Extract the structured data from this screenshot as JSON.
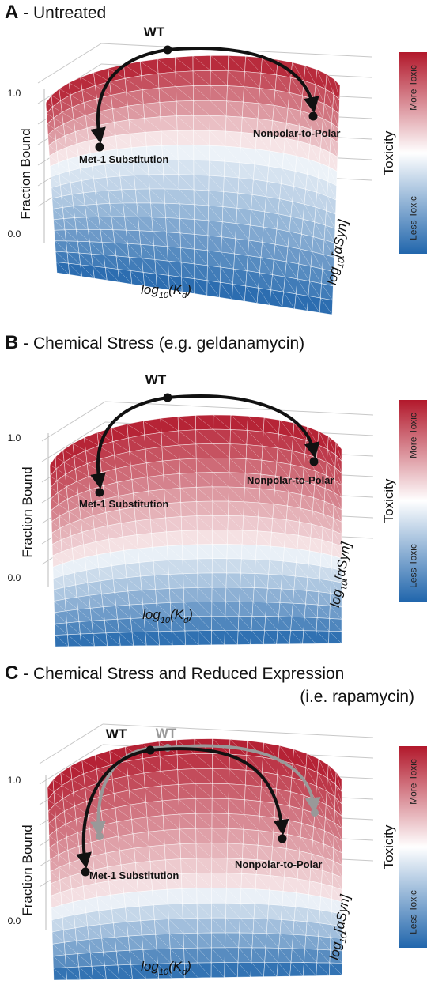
{
  "panels": [
    {
      "letter": "A",
      "title": " - Untreated",
      "subtitle": "",
      "wt_label": "WT",
      "met1_label": "Met-1 Substitution",
      "nonpolar_label": "Nonpolar-to-Polar",
      "y_axis_label": "Fraction Bound",
      "y_tick_high": "1.0",
      "y_tick_low": "0.0",
      "kd_axis_label": "log10(Kd)",
      "asyn_axis_label": "log10[αSyn]",
      "colorbar": {
        "title": "Toxicity",
        "top_label": "More Toxic",
        "bottom_label": "Less Toxic"
      },
      "red_fraction": 0.35
    },
    {
      "letter": "B",
      "title": " - Chemical Stress (e.g. geldanamycin)",
      "subtitle": "",
      "wt_label": "WT",
      "met1_label": "Met-1 Substitution",
      "nonpolar_label": "Nonpolar-to-Polar",
      "y_axis_label": "Fraction Bound",
      "y_tick_high": "1.0",
      "y_tick_low": "0.0",
      "kd_axis_label": "log10(Kd)",
      "asyn_axis_label": "log10[αSyn]",
      "colorbar": {
        "title": "Toxicity",
        "top_label": "More Toxic",
        "bottom_label": "Less Toxic"
      },
      "red_fraction": 0.55
    },
    {
      "letter": "C",
      "title": " - Chemical Stress and Reduced Expression",
      "subtitle": "(i.e. rapamycin)",
      "wt_label": "WT",
      "wt_ghost_label": "WT",
      "met1_label": "Met-1 Substitution",
      "nonpolar_label": "Nonpolar-to-Polar",
      "y_axis_label": "Fraction Bound",
      "y_tick_high": "1.0",
      "y_tick_low": "0.0",
      "kd_axis_label": "log10(Kd)",
      "asyn_axis_label": "log10[αSyn]",
      "colorbar": {
        "title": "Toxicity",
        "top_label": "More Toxic",
        "bottom_label": "Less Toxic"
      },
      "red_fraction": 0.62
    }
  ],
  "colors": {
    "more_toxic": "#b2182b",
    "mid": "#ffffff",
    "less_toxic": "#2166ac",
    "arrow": "#111111",
    "ghost_arrow": "#999999"
  }
}
